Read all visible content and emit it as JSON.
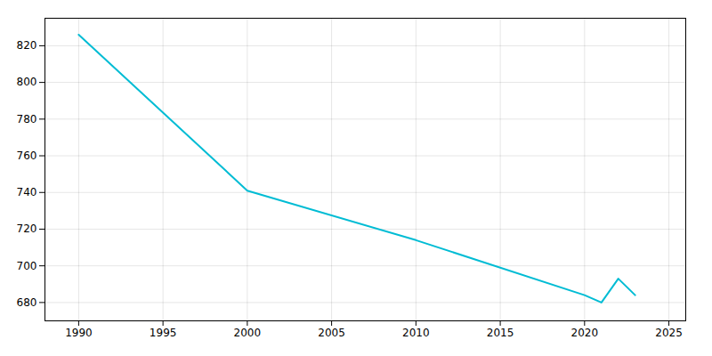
{
  "chart_data": {
    "type": "line",
    "x": [
      1990,
      2000,
      2010,
      2020,
      2021,
      2022,
      2023
    ],
    "values": [
      826,
      741,
      714,
      684,
      680,
      693,
      684
    ],
    "color": "#00BCD4",
    "xlim": [
      1988,
      2026
    ],
    "ylim": [
      670,
      835
    ],
    "xticks": [
      1990,
      1995,
      2000,
      2005,
      2010,
      2015,
      2020,
      2025
    ],
    "yticks": [
      680,
      700,
      720,
      740,
      760,
      780,
      800,
      820
    ],
    "grid": true
  }
}
